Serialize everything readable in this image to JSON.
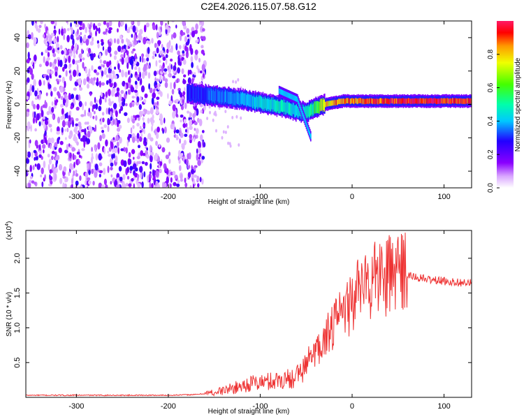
{
  "figure_title": "C2E4.2026.115.07.58.G12",
  "chart_data": [
    {
      "type": "heatmap",
      "title": "",
      "xlabel": "Height of straight line (km)",
      "ylabel": "Frequency (Hz)",
      "xlim": [
        -355,
        130
      ],
      "ylim": [
        -50,
        50
      ],
      "xticks": [
        -300,
        -200,
        -100,
        0,
        100
      ],
      "yticks": [
        -40,
        -20,
        0,
        20,
        40
      ],
      "xtick_labels": [
        "-300",
        "-200",
        "-100",
        "0",
        "100"
      ],
      "ytick_labels": [
        "-40",
        "-20",
        "0",
        "20",
        "40"
      ],
      "noise_region_km": [
        -355,
        -160
      ],
      "ridge_x_km": [
        -180,
        -150,
        -120,
        -100,
        -80,
        -70,
        -60,
        -50,
        -40,
        -30,
        -20,
        -10,
        0,
        20,
        50,
        80,
        100,
        130
      ],
      "ridge_f_hz": [
        7,
        5,
        3,
        1,
        -1,
        -2,
        -4,
        -5,
        -2,
        0,
        1,
        2,
        2,
        2,
        2,
        2,
        2,
        2
      ],
      "ridge_amplitude": [
        0.3,
        0.35,
        0.4,
        0.45,
        0.5,
        0.5,
        0.45,
        0.5,
        0.6,
        0.8,
        0.85,
        0.9,
        0.9,
        0.95,
        0.98,
        0.98,
        0.98,
        0.98
      ],
      "branch_x_km": [
        -80,
        -60,
        -45
      ],
      "branch_f_hz": [
        8,
        3,
        -20
      ],
      "colorbar": {
        "label": "Normalized spectral amplitude",
        "range": [
          0,
          1
        ],
        "ticks": [
          0.0,
          0.2,
          0.4,
          0.6,
          0.8
        ],
        "tick_labels": [
          "0.0",
          "0.2",
          "0.4",
          "0.6",
          "0.8"
        ]
      }
    },
    {
      "type": "line",
      "title": "",
      "xlabel": "Height of straight line (km)",
      "ylabel": "SNR (10 * v/v)",
      "scale_label": "(x10",
      "scale_exponent": "4",
      "scale_suffix": ")",
      "xlim": [
        -355,
        130
      ],
      "ylim": [
        0,
        2.4
      ],
      "xticks": [
        -300,
        -200,
        -100,
        0,
        100
      ],
      "yticks": [
        0.5,
        1.0,
        1.5,
        2.0
      ],
      "xtick_labels": [
        "-300",
        "-200",
        "-100",
        "0",
        "100"
      ],
      "ytick_labels": [
        "0.5",
        "1.0",
        "1.5",
        "2.0"
      ],
      "color": "#ee3333",
      "x": [
        -355,
        -300,
        -250,
        -200,
        -170,
        -150,
        -130,
        -110,
        -90,
        -70,
        -55,
        -45,
        -35,
        -25,
        -15,
        -5,
        5,
        15,
        25,
        35,
        45,
        60,
        80,
        100,
        130
      ],
      "y": [
        0.03,
        0.03,
        0.03,
        0.03,
        0.04,
        0.07,
        0.13,
        0.2,
        0.23,
        0.27,
        0.33,
        0.55,
        0.75,
        0.95,
        1.1,
        1.3,
        1.45,
        1.6,
        1.7,
        1.78,
        1.8,
        1.75,
        1.7,
        1.67,
        1.64
      ]
    }
  ]
}
